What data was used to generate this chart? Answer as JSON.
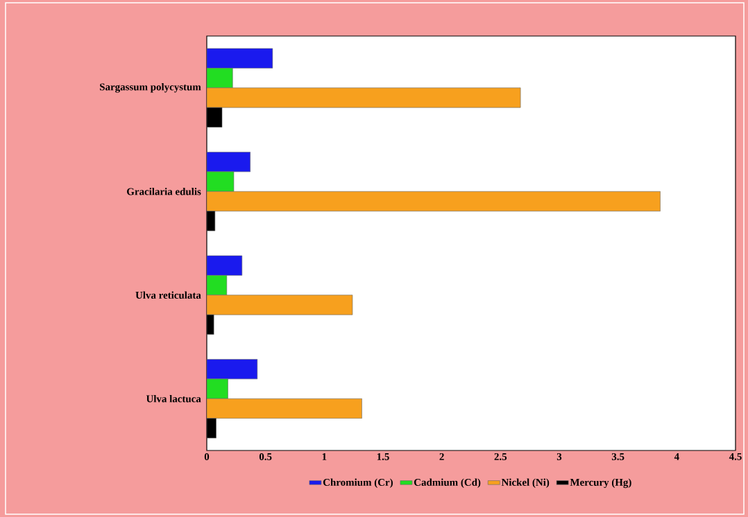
{
  "chart_data": {
    "type": "bar",
    "orientation": "horizontal",
    "categories": [
      "Sargassum polycystum",
      "Gracilaria edulis",
      "Ulva reticulata",
      "Ulva lactuca"
    ],
    "series": [
      {
        "name": "Chromium (Cr)",
        "color": "#1a1aee",
        "values": [
          0.56,
          0.37,
          0.3,
          0.43
        ]
      },
      {
        "name": "Cadmium (Cd)",
        "color": "#22dd22",
        "values": [
          0.22,
          0.23,
          0.17,
          0.18
        ]
      },
      {
        "name": "Nickel (Ni)",
        "color": "#f7a01e",
        "values": [
          2.67,
          3.86,
          1.24,
          1.32
        ]
      },
      {
        "name": "Mercury (Hg)",
        "color": "#000000",
        "values": [
          0.13,
          0.07,
          0.06,
          0.08
        ]
      }
    ],
    "xlim": [
      0,
      4.5
    ],
    "xticks": [
      0,
      0.5,
      1,
      1.5,
      2,
      2.5,
      3,
      3.5,
      4,
      4.5
    ],
    "legend": "bottom"
  }
}
